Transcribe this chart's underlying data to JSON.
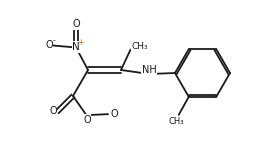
{
  "bg_color": "#ffffff",
  "line_color": "#1a1a1a",
  "lw": 1.3,
  "figsize": [
    2.57,
    1.52
  ],
  "dpi": 100,
  "fs": 7.0,
  "fs_small": 5.5,
  "xlim": [
    0,
    2.57
  ],
  "ylim": [
    0,
    1.52
  ],
  "charge_color": "#cc6600",
  "minus_color": "#333333"
}
